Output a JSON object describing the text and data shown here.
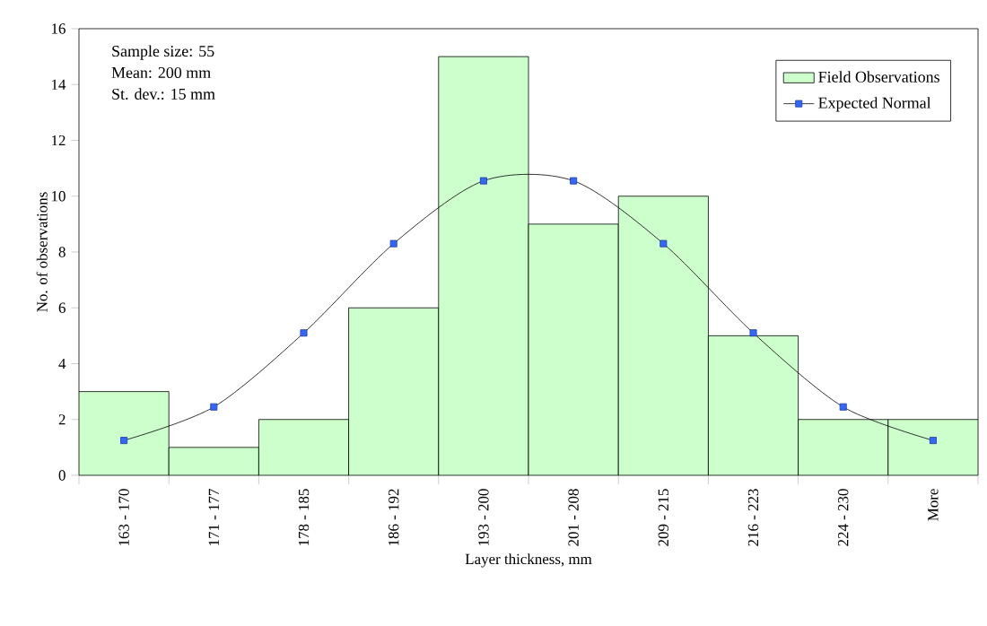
{
  "chart_data": {
    "type": "bar",
    "xlabel": "Layer thickness, mm",
    "ylabel": "No. of observations",
    "categories": [
      "163 - 170",
      "171 - 177",
      "178 - 185",
      "186 - 192",
      "193 - 200",
      "201 - 208",
      "209 - 215",
      "216 - 223",
      "224 - 230",
      "More"
    ],
    "series": [
      {
        "name": "Field Observations",
        "color": "#ccffcc",
        "values": [
          3,
          1,
          2,
          6,
          15,
          9,
          10,
          5,
          2,
          2
        ]
      },
      {
        "name": "Expected Normal",
        "type": "line",
        "color": "#3366ff",
        "marker": "square",
        "values": [
          1.25,
          2.45,
          5.1,
          8.3,
          10.55,
          10.55,
          8.3,
          5.1,
          2.45,
          1.25
        ]
      }
    ],
    "ylim": [
      0,
      16
    ],
    "yticks": [
      0,
      2,
      4,
      6,
      8,
      10,
      12,
      14,
      16
    ],
    "legend": "top right",
    "grid": false,
    "annotations": [
      "Sample size: 55",
      "Mean: 200 mm",
      "St. dev.: 15 mm"
    ]
  }
}
